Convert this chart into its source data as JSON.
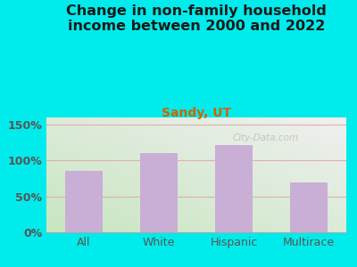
{
  "title": "Change in non-family household\nincome between 2000 and 2022",
  "subtitle": "Sandy, UT",
  "categories": [
    "All",
    "White",
    "Hispanic",
    "Multirace"
  ],
  "values": [
    85,
    110,
    122,
    70
  ],
  "bar_color": "#c9aed6",
  "title_color": "#1a1a1a",
  "subtitle_color": "#cc6600",
  "background_outer": "#00ebeb",
  "background_inner_topleft": "#c8e6c0",
  "background_inner_bottomright": "#f0f0f0",
  "ylim": [
    0,
    160
  ],
  "yticks": [
    0,
    50,
    100,
    150
  ],
  "ytick_labels": [
    "0%",
    "50%",
    "100%",
    "150%"
  ],
  "watermark": "City-Data.com",
  "grid_color": "#ddb0b0",
  "title_fontsize": 11.5,
  "subtitle_fontsize": 10,
  "tick_fontsize": 9
}
